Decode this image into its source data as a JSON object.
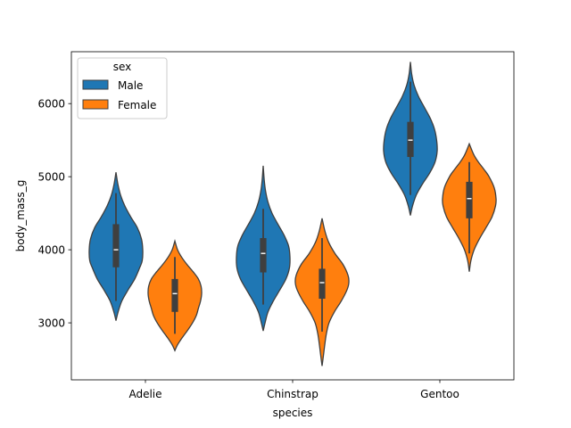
{
  "chart_data": {
    "type": "violin",
    "xlabel": "species",
    "ylabel": "body_mass_g",
    "categories": [
      "Adelie",
      "Chinstrap",
      "Gentoo"
    ],
    "ylim": [
      2220,
      6710
    ],
    "yticks": [
      3000,
      4000,
      5000,
      6000
    ],
    "legend": {
      "title": "sex",
      "position": "upper-left",
      "entries": [
        "Male",
        "Female"
      ]
    },
    "grid": false,
    "series": [
      {
        "name": "Male",
        "color": "#1f77b4",
        "violins": [
          {
            "category": "Adelie",
            "min": 3030,
            "max": 5060,
            "q1": 3760,
            "median": 4000,
            "q3": 4350,
            "whisker_low": 3300,
            "whisker_high": 4775,
            "profile": [
              [
                3030,
                0.0
              ],
              [
                3150,
                0.08
              ],
              [
                3300,
                0.22
              ],
              [
                3450,
                0.45
              ],
              [
                3600,
                0.7
              ],
              [
                3750,
                0.88
              ],
              [
                3850,
                0.98
              ],
              [
                4000,
                1.0
              ],
              [
                4150,
                0.95
              ],
              [
                4300,
                0.8
              ],
              [
                4450,
                0.55
              ],
              [
                4600,
                0.33
              ],
              [
                4750,
                0.17
              ],
              [
                4900,
                0.07
              ],
              [
                5060,
                0.0
              ]
            ]
          },
          {
            "category": "Chinstrap",
            "min": 2890,
            "max": 5150,
            "q1": 3690,
            "median": 3950,
            "q3": 4160,
            "whisker_low": 3250,
            "whisker_high": 4560,
            "profile": [
              [
                2890,
                0.0
              ],
              [
                3000,
                0.07
              ],
              [
                3150,
                0.18
              ],
              [
                3300,
                0.38
              ],
              [
                3450,
                0.62
              ],
              [
                3600,
                0.85
              ],
              [
                3750,
                0.98
              ],
              [
                3900,
                1.0
              ],
              [
                4050,
                0.95
              ],
              [
                4200,
                0.78
              ],
              [
                4350,
                0.55
              ],
              [
                4500,
                0.33
              ],
              [
                4650,
                0.18
              ],
              [
                4800,
                0.09
              ],
              [
                4950,
                0.04
              ],
              [
                5150,
                0.0
              ]
            ]
          },
          {
            "category": "Gentoo",
            "min": 4470,
            "max": 6570,
            "q1": 5270,
            "median": 5500,
            "q3": 5750,
            "whisker_low": 4750,
            "whisker_high": 6300,
            "profile": [
              [
                4470,
                0.0
              ],
              [
                4600,
                0.08
              ],
              [
                4750,
                0.22
              ],
              [
                4900,
                0.45
              ],
              [
                5050,
                0.72
              ],
              [
                5200,
                0.92
              ],
              [
                5350,
                1.0
              ],
              [
                5500,
                0.98
              ],
              [
                5650,
                0.9
              ],
              [
                5800,
                0.74
              ],
              [
                5950,
                0.52
              ],
              [
                6100,
                0.3
              ],
              [
                6250,
                0.14
              ],
              [
                6400,
                0.05
              ],
              [
                6570,
                0.0
              ]
            ]
          }
        ]
      },
      {
        "name": "Female",
        "color": "#ff7f0e",
        "violins": [
          {
            "category": "Adelie",
            "min": 2620,
            "max": 4120,
            "q1": 3150,
            "median": 3400,
            "q3": 3600,
            "whisker_low": 2850,
            "whisker_high": 3900,
            "profile": [
              [
                2620,
                0.0
              ],
              [
                2700,
                0.1
              ],
              [
                2800,
                0.28
              ],
              [
                2900,
                0.48
              ],
              [
                3000,
                0.66
              ],
              [
                3100,
                0.8
              ],
              [
                3200,
                0.88
              ],
              [
                3300,
                0.96
              ],
              [
                3400,
                1.0
              ],
              [
                3500,
                0.98
              ],
              [
                3600,
                0.88
              ],
              [
                3700,
                0.68
              ],
              [
                3800,
                0.45
              ],
              [
                3900,
                0.25
              ],
              [
                4000,
                0.1
              ],
              [
                4120,
                0.0
              ]
            ]
          },
          {
            "category": "Chinstrap",
            "min": 2410,
            "max": 4430,
            "q1": 3330,
            "median": 3550,
            "q3": 3740,
            "whisker_low": 2880,
            "whisker_high": 4160,
            "profile": [
              [
                2410,
                0.0
              ],
              [
                2550,
                0.05
              ],
              [
                2700,
                0.1
              ],
              [
                2850,
                0.16
              ],
              [
                3000,
                0.26
              ],
              [
                3150,
                0.46
              ],
              [
                3300,
                0.72
              ],
              [
                3450,
                0.93
              ],
              [
                3550,
                1.0
              ],
              [
                3650,
                0.97
              ],
              [
                3800,
                0.78
              ],
              [
                3950,
                0.48
              ],
              [
                4100,
                0.25
              ],
              [
                4250,
                0.11
              ],
              [
                4430,
                0.0
              ]
            ]
          },
          {
            "category": "Gentoo",
            "min": 3700,
            "max": 5450,
            "q1": 4430,
            "median": 4700,
            "q3": 4930,
            "whisker_low": 3950,
            "whisker_high": 5200,
            "profile": [
              [
                3700,
                0.0
              ],
              [
                3850,
                0.06
              ],
              [
                4000,
                0.18
              ],
              [
                4150,
                0.38
              ],
              [
                4300,
                0.62
              ],
              [
                4450,
                0.85
              ],
              [
                4600,
                0.98
              ],
              [
                4700,
                1.0
              ],
              [
                4850,
                0.93
              ],
              [
                5000,
                0.74
              ],
              [
                5100,
                0.55
              ],
              [
                5200,
                0.34
              ],
              [
                5300,
                0.17
              ],
              [
                5450,
                0.0
              ]
            ]
          }
        ]
      }
    ]
  }
}
